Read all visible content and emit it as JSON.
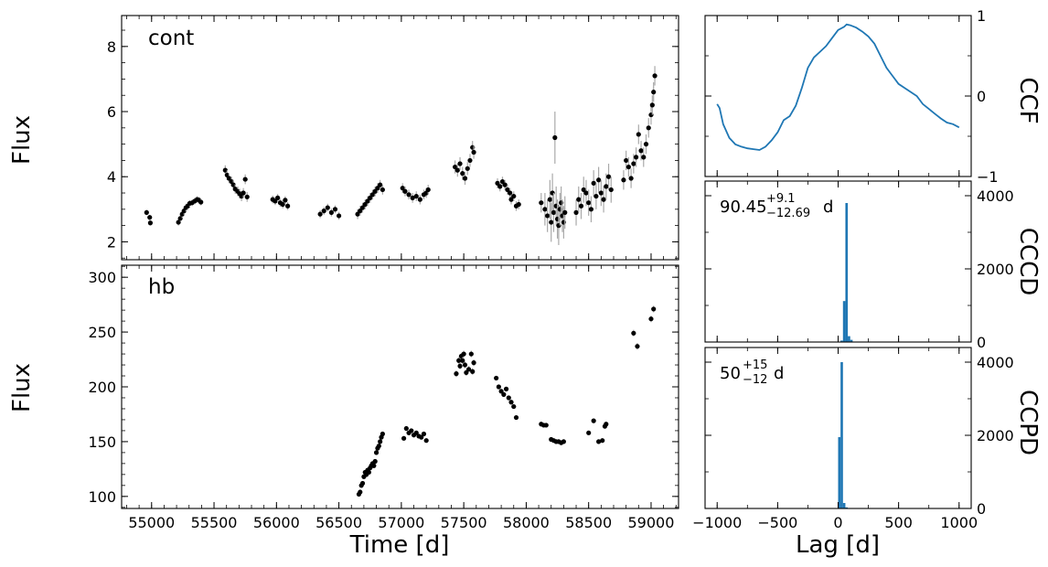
{
  "chart_data": [
    {
      "type": "scatter",
      "panel_label": "cont",
      "ylabel": "Flux",
      "xlabel": "",
      "xlim": [
        54760,
        59220
      ],
      "ylim": [
        1.45,
        8.95
      ],
      "xticks": [
        55000,
        55500,
        56000,
        56500,
        57000,
        57500,
        58000,
        58500,
        59000
      ],
      "yticks": [
        2,
        4,
        6,
        8
      ],
      "error_bars": true,
      "marker_color": "#000000",
      "errorbar_color": "#a9a9a9",
      "points": [
        [
          54960,
          2.9,
          0.08
        ],
        [
          54985,
          2.75,
          0.08
        ],
        [
          54990,
          2.58,
          0.08
        ],
        [
          55215,
          2.6,
          0.1
        ],
        [
          55230,
          2.72,
          0.1
        ],
        [
          55245,
          2.85,
          0.12
        ],
        [
          55260,
          2.95,
          0.12
        ],
        [
          55275,
          3.05,
          0.12
        ],
        [
          55290,
          3.1,
          0.12
        ],
        [
          55305,
          3.18,
          0.1
        ],
        [
          55325,
          3.2,
          0.1
        ],
        [
          55345,
          3.25,
          0.1
        ],
        [
          55365,
          3.3,
          0.1
        ],
        [
          55380,
          3.28,
          0.1
        ],
        [
          55395,
          3.22,
          0.1
        ],
        [
          55590,
          4.2,
          0.15
        ],
        [
          55605,
          4.05,
          0.15
        ],
        [
          55620,
          3.95,
          0.15
        ],
        [
          55640,
          3.85,
          0.15
        ],
        [
          55655,
          3.75,
          0.15
        ],
        [
          55670,
          3.62,
          0.15
        ],
        [
          55690,
          3.55,
          0.15
        ],
        [
          55705,
          3.48,
          0.15
        ],
        [
          55720,
          3.4,
          0.15
        ],
        [
          55735,
          3.5,
          0.15
        ],
        [
          55750,
          3.92,
          0.15
        ],
        [
          55765,
          3.38,
          0.15
        ],
        [
          55970,
          3.3,
          0.12
        ],
        [
          55990,
          3.25,
          0.12
        ],
        [
          56010,
          3.35,
          0.12
        ],
        [
          56030,
          3.2,
          0.12
        ],
        [
          56050,
          3.15,
          0.12
        ],
        [
          56070,
          3.28,
          0.12
        ],
        [
          56090,
          3.1,
          0.12
        ],
        [
          56350,
          2.85,
          0.12
        ],
        [
          56380,
          2.95,
          0.12
        ],
        [
          56410,
          3.05,
          0.12
        ],
        [
          56440,
          2.9,
          0.12
        ],
        [
          56470,
          3.0,
          0.12
        ],
        [
          56500,
          2.8,
          0.12
        ],
        [
          56650,
          2.85,
          0.15
        ],
        [
          56670,
          2.95,
          0.15
        ],
        [
          56690,
          3.05,
          0.15
        ],
        [
          56710,
          3.15,
          0.15
        ],
        [
          56730,
          3.25,
          0.15
        ],
        [
          56750,
          3.35,
          0.15
        ],
        [
          56770,
          3.45,
          0.15
        ],
        [
          56790,
          3.55,
          0.15
        ],
        [
          56810,
          3.65,
          0.15
        ],
        [
          56830,
          3.75,
          0.15
        ],
        [
          56850,
          3.6,
          0.15
        ],
        [
          57010,
          3.65,
          0.15
        ],
        [
          57030,
          3.55,
          0.15
        ],
        [
          57060,
          3.45,
          0.15
        ],
        [
          57090,
          3.35,
          0.15
        ],
        [
          57120,
          3.4,
          0.15
        ],
        [
          57150,
          3.3,
          0.15
        ],
        [
          57180,
          3.45,
          0.15
        ],
        [
          57200,
          3.5,
          0.15
        ],
        [
          57215,
          3.6,
          0.15
        ],
        [
          57430,
          4.3,
          0.2
        ],
        [
          57450,
          4.2,
          0.2
        ],
        [
          57470,
          4.4,
          0.2
        ],
        [
          57490,
          4.1,
          0.2
        ],
        [
          57510,
          3.95,
          0.2
        ],
        [
          57530,
          4.25,
          0.2
        ],
        [
          57550,
          4.5,
          0.2
        ],
        [
          57570,
          4.9,
          0.2
        ],
        [
          57580,
          4.75,
          0.2
        ],
        [
          57770,
          3.8,
          0.15
        ],
        [
          57790,
          3.7,
          0.15
        ],
        [
          57810,
          3.85,
          0.15
        ],
        [
          57830,
          3.75,
          0.15
        ],
        [
          57850,
          3.6,
          0.15
        ],
        [
          57870,
          3.5,
          0.15
        ],
        [
          57880,
          3.3,
          0.15
        ],
        [
          57900,
          3.4,
          0.15
        ],
        [
          57920,
          3.1,
          0.15
        ],
        [
          57940,
          3.15,
          0.15
        ],
        [
          58120,
          3.2,
          0.3
        ],
        [
          58150,
          3.0,
          0.5
        ],
        [
          58170,
          2.8,
          0.5
        ],
        [
          58190,
          3.3,
          0.6
        ],
        [
          58200,
          2.6,
          0.6
        ],
        [
          58210,
          3.5,
          0.6
        ],
        [
          58220,
          2.9,
          0.6
        ],
        [
          58230,
          5.2,
          0.8
        ],
        [
          58240,
          3.1,
          0.6
        ],
        [
          58250,
          2.7,
          0.6
        ],
        [
          58260,
          2.5,
          0.6
        ],
        [
          58270,
          3.0,
          0.5
        ],
        [
          58280,
          3.2,
          0.5
        ],
        [
          58290,
          2.8,
          0.5
        ],
        [
          58300,
          2.6,
          0.5
        ],
        [
          58310,
          2.9,
          0.5
        ],
        [
          58400,
          2.9,
          0.4
        ],
        [
          58420,
          3.3,
          0.4
        ],
        [
          58440,
          3.1,
          0.4
        ],
        [
          58460,
          3.6,
          0.4
        ],
        [
          58480,
          3.5,
          0.4
        ],
        [
          58500,
          3.2,
          0.4
        ],
        [
          58520,
          3.0,
          0.4
        ],
        [
          58540,
          3.8,
          0.4
        ],
        [
          58560,
          3.4,
          0.4
        ],
        [
          58580,
          3.9,
          0.4
        ],
        [
          58600,
          3.5,
          0.4
        ],
        [
          58620,
          3.3,
          0.4
        ],
        [
          58640,
          3.7,
          0.4
        ],
        [
          58660,
          4.0,
          0.4
        ],
        [
          58680,
          3.6,
          0.4
        ],
        [
          58780,
          3.9,
          0.3
        ],
        [
          58800,
          4.5,
          0.3
        ],
        [
          58820,
          4.3,
          0.3
        ],
        [
          58840,
          3.95,
          0.3
        ],
        [
          58860,
          4.4,
          0.3
        ],
        [
          58880,
          4.6,
          0.3
        ],
        [
          58900,
          5.3,
          0.3
        ],
        [
          58920,
          4.8,
          0.3
        ],
        [
          58940,
          4.6,
          0.3
        ],
        [
          58960,
          5.0,
          0.3
        ],
        [
          58980,
          5.5,
          0.3
        ],
        [
          59000,
          5.9,
          0.3
        ],
        [
          59010,
          6.2,
          0.3
        ],
        [
          59020,
          6.6,
          0.3
        ],
        [
          59030,
          7.1,
          0.3
        ]
      ]
    },
    {
      "type": "scatter",
      "panel_label": "hb",
      "ylabel": "Flux",
      "xlabel": "Time [d]",
      "xlim": [
        54760,
        59220
      ],
      "ylim": [
        89,
        311
      ],
      "xticks": [
        55000,
        55500,
        56000,
        56500,
        57000,
        57500,
        58000,
        58500,
        59000
      ],
      "yticks": [
        100,
        150,
        200,
        250,
        300
      ],
      "error_bars": true,
      "marker_color": "#000000",
      "errorbar_color": "#a9a9a9",
      "points": [
        [
          56660,
          102,
          2
        ],
        [
          56670,
          104,
          2
        ],
        [
          56680,
          110,
          2
        ],
        [
          56690,
          112,
          2
        ],
        [
          56700,
          118,
          2
        ],
        [
          56710,
          122,
          2
        ],
        [
          56720,
          120,
          2
        ],
        [
          56730,
          124,
          2
        ],
        [
          56740,
          122,
          2
        ],
        [
          56750,
          126,
          2
        ],
        [
          56760,
          128,
          2
        ],
        [
          56770,
          130,
          2
        ],
        [
          56780,
          128,
          2
        ],
        [
          56790,
          132,
          2
        ],
        [
          56800,
          140,
          2
        ],
        [
          56810,
          144,
          2
        ],
        [
          56820,
          146,
          2
        ],
        [
          56830,
          150,
          2
        ],
        [
          56840,
          154,
          2
        ],
        [
          56850,
          157,
          2
        ],
        [
          57020,
          153,
          2
        ],
        [
          57040,
          162,
          2
        ],
        [
          57060,
          158,
          2
        ],
        [
          57080,
          160,
          2
        ],
        [
          57100,
          156,
          2
        ],
        [
          57120,
          158,
          2
        ],
        [
          57140,
          155,
          2
        ],
        [
          57160,
          154,
          2
        ],
        [
          57180,
          157,
          2
        ],
        [
          57200,
          151,
          2
        ],
        [
          57440,
          212,
          3
        ],
        [
          57460,
          224,
          3
        ],
        [
          57470,
          219,
          3
        ],
        [
          57480,
          228,
          3
        ],
        [
          57490,
          224,
          3
        ],
        [
          57500,
          230,
          3
        ],
        [
          57510,
          220,
          3
        ],
        [
          57520,
          213,
          3
        ],
        [
          57540,
          216,
          3
        ],
        [
          57560,
          230,
          3
        ],
        [
          57570,
          214,
          3
        ],
        [
          57580,
          222,
          3
        ],
        [
          57760,
          208,
          2
        ],
        [
          57780,
          200,
          2
        ],
        [
          57800,
          196,
          2
        ],
        [
          57820,
          193,
          2
        ],
        [
          57840,
          198,
          2
        ],
        [
          57860,
          190,
          2
        ],
        [
          57880,
          186,
          2
        ],
        [
          57900,
          182,
          2
        ],
        [
          57920,
          172,
          2
        ],
        [
          58120,
          166,
          2
        ],
        [
          58140,
          165,
          2
        ],
        [
          58160,
          165,
          2
        ],
        [
          58200,
          152,
          2
        ],
        [
          58220,
          151,
          2
        ],
        [
          58240,
          150,
          2
        ],
        [
          58260,
          150,
          2
        ],
        [
          58280,
          149,
          2
        ],
        [
          58300,
          150,
          2
        ],
        [
          58500,
          158,
          2
        ],
        [
          58540,
          169,
          2
        ],
        [
          58580,
          150,
          2
        ],
        [
          58610,
          151,
          2
        ],
        [
          58630,
          164,
          2
        ],
        [
          58640,
          166,
          2
        ],
        [
          58860,
          249,
          3
        ],
        [
          58890,
          237,
          3
        ],
        [
          59000,
          262,
          3
        ],
        [
          59020,
          271,
          3
        ]
      ]
    },
    {
      "type": "line",
      "axis_label_right": "CCF",
      "xlim": [
        -1100,
        1100
      ],
      "ylim": [
        -1,
        1
      ],
      "yticks": [
        -1,
        0,
        1
      ],
      "color": "#1f77b4",
      "x": [
        -1000,
        -980,
        -950,
        -900,
        -850,
        -800,
        -750,
        -700,
        -650,
        -600,
        -550,
        -500,
        -450,
        -400,
        -350,
        -300,
        -250,
        -200,
        -150,
        -100,
        -50,
        0,
        50,
        70,
        100,
        150,
        200,
        250,
        300,
        350,
        400,
        450,
        500,
        550,
        600,
        650,
        700,
        750,
        800,
        850,
        900,
        950,
        1000
      ],
      "y": [
        -0.1,
        -0.15,
        -0.35,
        -0.52,
        -0.6,
        -0.63,
        -0.65,
        -0.66,
        -0.67,
        -0.63,
        -0.55,
        -0.45,
        -0.3,
        -0.25,
        -0.12,
        0.1,
        0.35,
        0.48,
        0.55,
        0.62,
        0.72,
        0.82,
        0.86,
        0.89,
        0.88,
        0.85,
        0.8,
        0.74,
        0.65,
        0.5,
        0.35,
        0.25,
        0.15,
        0.1,
        0.05,
        0.0,
        -0.1,
        -0.16,
        -0.22,
        -0.28,
        -0.33,
        -0.35,
        -0.39
      ]
    },
    {
      "type": "bar",
      "axis_label_right": "CCCD",
      "annotation": "90.45^{+9.1}_{-12.69} d",
      "annotation_parts": {
        "value": "90.45",
        "upper": "+9.1",
        "lower": "−12.69",
        "unit": "d"
      },
      "xlim": [
        -1100,
        1100
      ],
      "ylim": [
        0,
        4400
      ],
      "yticks": [
        0,
        2000,
        4000
      ],
      "color": "#1f77b4",
      "bin_edges": [
        20,
        40,
        60,
        80,
        100,
        120,
        140
      ],
      "values": [
        40,
        1120,
        3800,
        160,
        60,
        10
      ]
    },
    {
      "type": "bar",
      "axis_label_right": "CCPD",
      "annotation": "50^{+15}_{-12} d",
      "annotation_parts": {
        "value": "50",
        "upper": "+15",
        "lower": "−12",
        "unit": "d"
      },
      "xlabel": "Lag [d]",
      "xlim": [
        -1100,
        1100
      ],
      "ylim": [
        0,
        4400
      ],
      "xticks": [
        -1000,
        -500,
        0,
        500,
        1000
      ],
      "yticks": [
        0,
        2000,
        4000
      ],
      "color": "#1f77b4",
      "bin_edges": [
        0,
        20,
        40,
        60,
        80,
        100,
        120
      ],
      "values": [
        1950,
        4000,
        150,
        30,
        10,
        5
      ]
    }
  ]
}
